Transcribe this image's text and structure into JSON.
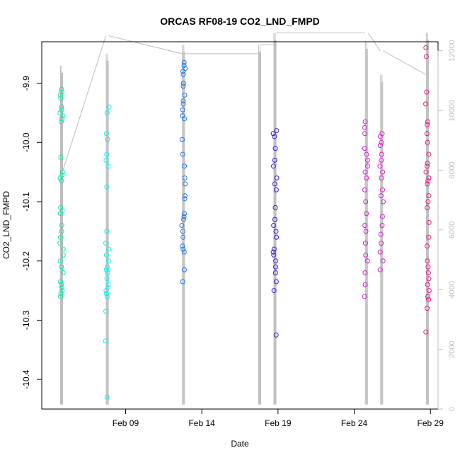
{
  "chart_data": {
    "type": "scatter",
    "title": "ORCAS RF08-19 CO2_LND_FMPD",
    "xlabel": "Date",
    "ylabel": "CO2_LND_FMPD",
    "x_ticks": [
      "Feb 09",
      "Feb 14",
      "Feb 19",
      "Feb 24",
      "Feb 29"
    ],
    "y_ticks": [
      "-9.9",
      "-10.0",
      "-10.1",
      "-10.2",
      "-10.3",
      "-10.4"
    ],
    "y2_ticks": [
      "0",
      "2000",
      "4000",
      "6000",
      "8000",
      "10000",
      "12000"
    ],
    "xlim": [
      "2016-02-04",
      "2016-03-01"
    ],
    "ylim": [
      -10.45,
      -9.83
    ],
    "y2lim": [
      0,
      12300
    ],
    "grid": false,
    "altitude_trace_color": "#bebebe",
    "series": [
      {
        "date": "2016-02-05",
        "color": "#00f0b0",
        "y": [
          -9.91,
          -9.915,
          -9.92,
          -9.925,
          -9.94,
          -9.945,
          -9.95,
          -9.955,
          -9.96,
          -9.965,
          -10.025,
          -10.05,
          -10.055,
          -10.06,
          -10.065,
          -10.11,
          -10.115,
          -10.12,
          -10.14,
          -10.15,
          -10.16,
          -10.17,
          -10.18,
          -10.19,
          -10.2,
          -10.21,
          -10.22,
          -10.235,
          -10.24,
          -10.245,
          -10.25,
          -10.255,
          -10.26
        ]
      },
      {
        "date": "2016-02-08",
        "color": "#00f5f5",
        "y": [
          -9.94,
          -9.95,
          -9.985,
          -9.995,
          -10.02,
          -10.03,
          -10.04,
          -10.075,
          -10.15,
          -10.17,
          -10.18,
          -10.19,
          -10.2,
          -10.21,
          -10.215,
          -10.22,
          -10.23,
          -10.24,
          -10.245,
          -10.25,
          -10.255,
          -10.26,
          -10.285,
          -10.335,
          -10.43
        ]
      },
      {
        "date": "2016-02-13",
        "color": "#1a7bf0",
        "y": [
          -9.865,
          -9.87,
          -9.875,
          -9.88,
          -9.885,
          -9.9,
          -9.905,
          -9.92,
          -9.93,
          -9.935,
          -9.945,
          -9.955,
          -9.96,
          -9.995,
          -10.02,
          -10.04,
          -10.06,
          -10.07,
          -10.09,
          -10.095,
          -10.12,
          -10.125,
          -10.13,
          -10.14,
          -10.15,
          -10.16,
          -10.175,
          -10.18,
          -10.185,
          -10.215,
          -10.235
        ]
      },
      {
        "date": "2016-02-19",
        "color": "#3a1ae0",
        "y": [
          -9.98,
          -9.985,
          -9.99,
          -10.01,
          -10.03,
          -10.04,
          -10.06,
          -10.07,
          -10.08,
          -10.11,
          -10.13,
          -10.14,
          -10.15,
          -10.16,
          -10.18,
          -10.185,
          -10.19,
          -10.2,
          -10.21,
          -10.22,
          -10.235,
          -10.25,
          -10.325
        ]
      },
      {
        "date": "2016-02-25",
        "color": "#e01ad8",
        "y": [
          -9.965,
          -9.975,
          -9.985,
          -10.01,
          -10.02,
          -10.03,
          -10.04,
          -10.05,
          -10.06,
          -10.08,
          -10.1,
          -10.12,
          -10.14,
          -10.15,
          -10.17,
          -10.19,
          -10.2,
          -10.22,
          -10.24,
          -10.26
        ]
      },
      {
        "date": "2016-02-26",
        "color": "#e01ad8",
        "y": [
          -9.985,
          -9.99,
          -10.0,
          -10.005,
          -10.02,
          -10.03,
          -10.04,
          -10.05,
          -10.06,
          -10.08,
          -10.09,
          -10.1,
          -10.125,
          -10.14,
          -10.155,
          -10.17,
          -10.185,
          -10.2,
          -10.215
        ]
      },
      {
        "date": "2016-02-29",
        "color": "#f0148c",
        "y": [
          -9.84,
          -9.855,
          -9.915,
          -9.935,
          -9.965,
          -9.97,
          -9.985,
          -10.0,
          -10.02,
          -10.035,
          -10.04,
          -10.05,
          -10.06,
          -10.065,
          -10.07,
          -10.09,
          -10.1,
          -10.11,
          -10.135,
          -10.16,
          -10.175,
          -10.2,
          -10.21,
          -10.22,
          -10.23,
          -10.24,
          -10.25,
          -10.26,
          -10.265,
          -10.28,
          -10.32
        ]
      }
    ],
    "altitude_trace": {
      "dates": [
        "2016-02-05",
        "2016-02-08",
        "2016-02-13",
        "2016-02-18",
        "2016-02-19",
        "2016-02-25",
        "2016-02-26",
        "2016-02-29"
      ],
      "ferry_start_alt": [
        8000,
        12500,
        11900,
        12200,
        12600,
        12600,
        12000,
        12600
      ],
      "ferry_end_alt": [
        12500,
        11900,
        11900,
        12200,
        12600,
        12000,
        11200,
        12600
      ],
      "flight_max_alt": [
        11500,
        11900,
        12200,
        12200,
        12600,
        12300,
        11200,
        12600
      ]
    }
  }
}
